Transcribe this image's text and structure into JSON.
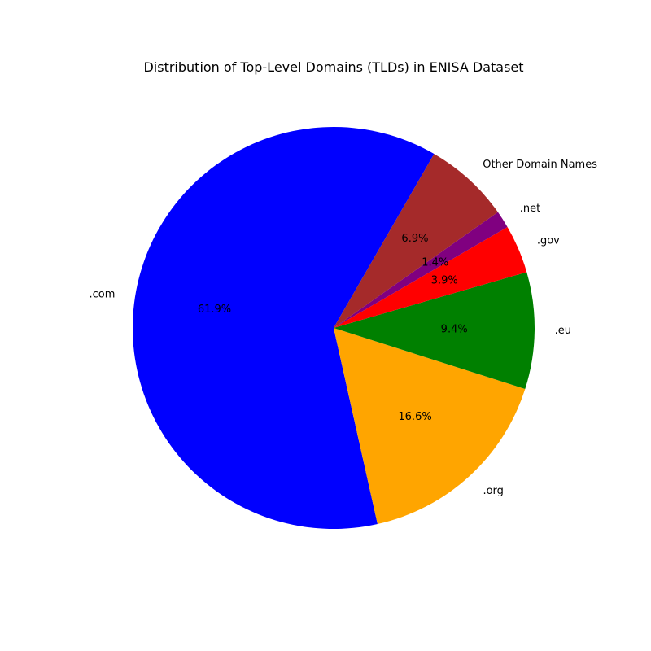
{
  "chart_data": {
    "type": "pie",
    "title": "Distribution of Top-Level Domains (TLDs) in ENISA Dataset",
    "start_angle_deg": 60,
    "direction": "counterclockwise",
    "slices": [
      {
        "label": ".com",
        "value": 61.9,
        "pct_label": "61.9%",
        "color": "#0000ff"
      },
      {
        "label": ".org",
        "value": 16.6,
        "pct_label": "16.6%",
        "color": "#ffa500"
      },
      {
        "label": ".eu",
        "value": 9.4,
        "pct_label": "9.4%",
        "color": "#008000"
      },
      {
        "label": ".gov",
        "value": 3.9,
        "pct_label": "3.9%",
        "color": "#ff0000"
      },
      {
        "label": ".net",
        "value": 1.4,
        "pct_label": "1.4%",
        "color": "#800080"
      },
      {
        "label": "Other Domain Names",
        "value": 6.9,
        "pct_label": "6.9%",
        "color": "#a52a2a"
      }
    ]
  }
}
